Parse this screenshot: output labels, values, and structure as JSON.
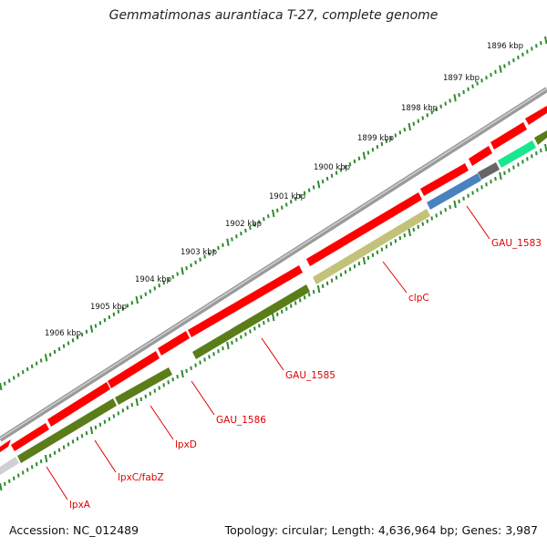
{
  "title": "Gemmatimonas aurantiaca T-27, complete genome",
  "footer": {
    "accession": "Accession: NC_012489",
    "summary": "Topology: circular; Length: 4,636,964 bp; Genes: 3,987"
  },
  "ruler": {
    "tick_labels": [
      "1896 kbp",
      "1897 kbp",
      "1898 kbp",
      "1899 kbp",
      "1900 kbp",
      "1901 kbp",
      "1902 kbp",
      "1903 kbp",
      "1904 kbp",
      "1905 kbp",
      "1906 kbp"
    ]
  },
  "genes": [
    "GAU_1583",
    "clpC",
    "GAU_1585",
    "GAU_1586",
    "lpxD",
    "lpxC/fabZ",
    "lpxA"
  ],
  "colors": {
    "backbone": "#8a8a8a",
    "cds_forward": "#ff0000",
    "cds_track": "#5a7d1a",
    "clpC_track": "#c2c27a",
    "gau1583_track": "#4a82c0",
    "dark_gene": "#666666",
    "teal_gene": "#17e88c",
    "light_gene": "#d0d0d0",
    "ticks": "#2f8a2f",
    "label": "#e00000"
  }
}
